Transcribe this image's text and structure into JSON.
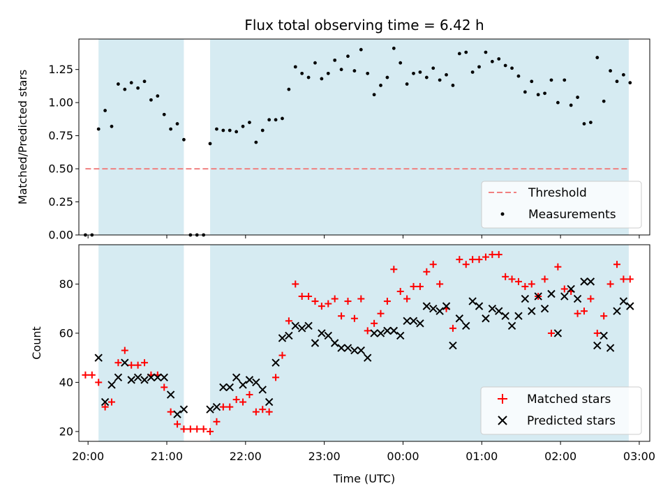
{
  "chart_data": [
    {
      "type": "scatter",
      "title": "Flux total observing time = 6.42 h",
      "xlabel": "",
      "ylabel": "Matched/Predicted stars",
      "xlim": [
        "19:53",
        "03:08"
      ],
      "ylim": [
        0,
        1.48
      ],
      "yticks": [
        0,
        0.25,
        0.5,
        0.75,
        1.0,
        1.25
      ],
      "ytick_labels": [
        "0.00",
        "0.25",
        "0.50",
        "0.75",
        "1.00",
        "1.25"
      ],
      "shaded_intervals": [
        [
          "20:08",
          "21:13"
        ],
        [
          "21:33",
          "02:52"
        ]
      ],
      "threshold": {
        "name": "Threshold",
        "value": 0.5,
        "x_range": [
          "19:58",
          "02:52"
        ],
        "color": "#f08080"
      },
      "legend_position": "lower right",
      "series": [
        {
          "name": "Measurements",
          "color": "#000000",
          "x": [
            "19:58",
            "20:03",
            "20:08",
            "20:13",
            "20:18",
            "20:23",
            "20:28",
            "20:33",
            "20:38",
            "20:43",
            "20:48",
            "20:53",
            "20:58",
            "21:03",
            "21:08",
            "21:13",
            "21:18",
            "21:23",
            "21:28",
            "21:33",
            "21:38",
            "21:43",
            "21:48",
            "21:53",
            "21:58",
            "22:03",
            "22:08",
            "22:13",
            "22:18",
            "22:23",
            "22:28",
            "22:33",
            "22:38",
            "22:43",
            "22:48",
            "22:53",
            "22:58",
            "23:03",
            "23:08",
            "23:13",
            "23:18",
            "23:23",
            "23:28",
            "23:33",
            "23:38",
            "23:43",
            "23:48",
            "23:53",
            "23:58",
            "00:03",
            "00:08",
            "00:13",
            "00:18",
            "00:23",
            "00:28",
            "00:33",
            "00:38",
            "00:43",
            "00:48",
            "00:53",
            "00:58",
            "01:03",
            "01:08",
            "01:13",
            "01:18",
            "01:23",
            "01:28",
            "01:33",
            "01:38",
            "01:43",
            "01:48",
            "01:53",
            "01:58",
            "02:03",
            "02:08",
            "02:13",
            "02:18",
            "02:23",
            "02:28",
            "02:33",
            "02:38",
            "02:43",
            "02:48",
            "02:53"
          ],
          "y": [
            0,
            0,
            0.8,
            0.94,
            0.82,
            1.14,
            1.1,
            1.15,
            1.11,
            1.16,
            1.02,
            1.05,
            0.91,
            0.8,
            0.84,
            0.72,
            0,
            0,
            0,
            0.69,
            0.8,
            0.79,
            0.79,
            0.78,
            0.82,
            0.85,
            0.7,
            0.79,
            0.87,
            0.87,
            0.88,
            1.1,
            1.27,
            1.22,
            1.19,
            1.3,
            1.18,
            1.22,
            1.32,
            1.25,
            1.35,
            1.24,
            1.4,
            1.22,
            1.06,
            1.13,
            1.19,
            1.41,
            1.3,
            1.14,
            1.22,
            1.23,
            1.19,
            1.26,
            1.17,
            1.21,
            1.13,
            1.37,
            1.38,
            1.23,
            1.27,
            1.38,
            1.31,
            1.33,
            1.28,
            1.26,
            1.2,
            1.08,
            1.16,
            1.06,
            1.07,
            1.17,
            1.0,
            1.17,
            0.98,
            1.04,
            0.84,
            0.85,
            1.34,
            1.01,
            1.24,
            1.16,
            1.21,
            1.15
          ]
        }
      ]
    },
    {
      "type": "scatter",
      "title": "",
      "xlabel": "Time (UTC)",
      "ylabel": "Count",
      "xlim": [
        "19:53",
        "03:08"
      ],
      "ylim": [
        16,
        96
      ],
      "yticks": [
        20,
        40,
        60,
        80
      ],
      "ytick_labels": [
        "20",
        "40",
        "60",
        "80"
      ],
      "xticks": [
        "20:00",
        "21:00",
        "22:00",
        "23:00",
        "00:00",
        "01:00",
        "02:00",
        "03:00"
      ],
      "shaded_intervals": [
        [
          "20:08",
          "21:13"
        ],
        [
          "21:33",
          "02:52"
        ]
      ],
      "legend_position": "lower right",
      "series": [
        {
          "name": "Matched stars",
          "marker": "plus",
          "color": "#ff0000",
          "x": [
            "19:58",
            "20:03",
            "20:08",
            "20:13",
            "20:18",
            "20:23",
            "20:28",
            "20:33",
            "20:38",
            "20:43",
            "20:48",
            "20:53",
            "20:58",
            "21:03",
            "21:08",
            "21:13",
            "21:18",
            "21:23",
            "21:28",
            "21:33",
            "21:38",
            "21:43",
            "21:48",
            "21:53",
            "21:58",
            "22:03",
            "22:08",
            "22:13",
            "22:18",
            "22:23",
            "22:28",
            "22:33",
            "22:38",
            "22:43",
            "22:48",
            "22:53",
            "22:58",
            "23:03",
            "23:08",
            "23:13",
            "23:18",
            "23:23",
            "23:28",
            "23:33",
            "23:38",
            "23:43",
            "23:48",
            "23:53",
            "23:58",
            "00:03",
            "00:08",
            "00:13",
            "00:18",
            "00:23",
            "00:28",
            "00:33",
            "00:38",
            "00:43",
            "00:48",
            "00:53",
            "00:58",
            "01:03",
            "01:08",
            "01:13",
            "01:18",
            "01:23",
            "01:28",
            "01:33",
            "01:38",
            "01:43",
            "01:48",
            "01:53",
            "01:58",
            "02:03",
            "02:08",
            "02:13",
            "02:18",
            "02:23",
            "02:28",
            "02:33",
            "02:38",
            "02:43",
            "02:48",
            "02:53"
          ],
          "y": [
            43,
            43,
            40,
            30,
            32,
            48,
            53,
            47,
            47,
            48,
            43,
            43,
            38,
            28,
            23,
            21,
            21,
            21,
            21,
            20,
            24,
            30,
            30,
            33,
            32,
            35,
            28,
            29,
            28,
            42,
            51,
            65,
            80,
            75,
            75,
            73,
            71,
            72,
            74,
            67,
            73,
            66,
            74,
            61,
            64,
            68,
            73,
            86,
            77,
            74,
            79,
            79,
            85,
            88,
            80,
            70,
            62,
            90,
            88,
            90,
            90,
            91,
            92,
            92,
            83,
            82,
            81,
            79,
            80,
            75,
            82,
            60,
            87,
            78,
            77,
            68,
            69,
            74,
            60,
            67,
            80,
            88,
            82,
            82
          ]
        },
        {
          "name": "Predicted stars",
          "marker": "x",
          "color": "#000000",
          "x": [
            "20:08",
            "20:13",
            "20:18",
            "20:23",
            "20:28",
            "20:33",
            "20:38",
            "20:43",
            "20:48",
            "20:53",
            "20:58",
            "21:03",
            "21:08",
            "21:13",
            "21:33",
            "21:38",
            "21:43",
            "21:48",
            "21:53",
            "21:58",
            "22:03",
            "22:08",
            "22:13",
            "22:18",
            "22:23",
            "22:28",
            "22:33",
            "22:38",
            "22:43",
            "22:48",
            "22:53",
            "22:58",
            "23:03",
            "23:08",
            "23:13",
            "23:18",
            "23:23",
            "23:28",
            "23:33",
            "23:38",
            "23:43",
            "23:48",
            "23:53",
            "23:58",
            "00:03",
            "00:08",
            "00:13",
            "00:18",
            "00:23",
            "00:28",
            "00:33",
            "00:38",
            "00:43",
            "00:48",
            "00:53",
            "00:58",
            "01:03",
            "01:08",
            "01:13",
            "01:18",
            "01:23",
            "01:28",
            "01:33",
            "01:38",
            "01:43",
            "01:48",
            "01:53",
            "01:58",
            "02:03",
            "02:08",
            "02:13",
            "02:18",
            "02:23",
            "02:28",
            "02:33",
            "02:38",
            "02:43",
            "02:48",
            "02:53"
          ],
          "y": [
            50,
            32,
            39,
            42,
            48,
            41,
            42,
            41,
            42,
            42,
            42,
            35,
            27,
            29,
            29,
            30,
            38,
            38,
            42,
            39,
            41,
            40,
            37,
            32,
            48,
            58,
            59,
            63,
            62,
            63,
            56,
            60,
            59,
            56,
            54,
            54,
            53,
            53,
            50,
            60,
            60,
            61,
            61,
            59,
            65,
            65,
            64,
            71,
            70,
            69,
            71,
            55,
            66,
            63,
            73,
            71,
            66,
            70,
            69,
            67,
            63,
            67,
            74,
            69,
            75,
            70,
            76,
            60,
            75,
            78,
            74,
            81,
            81,
            55,
            59,
            54,
            69,
            73,
            71
          ]
        }
      ]
    }
  ]
}
